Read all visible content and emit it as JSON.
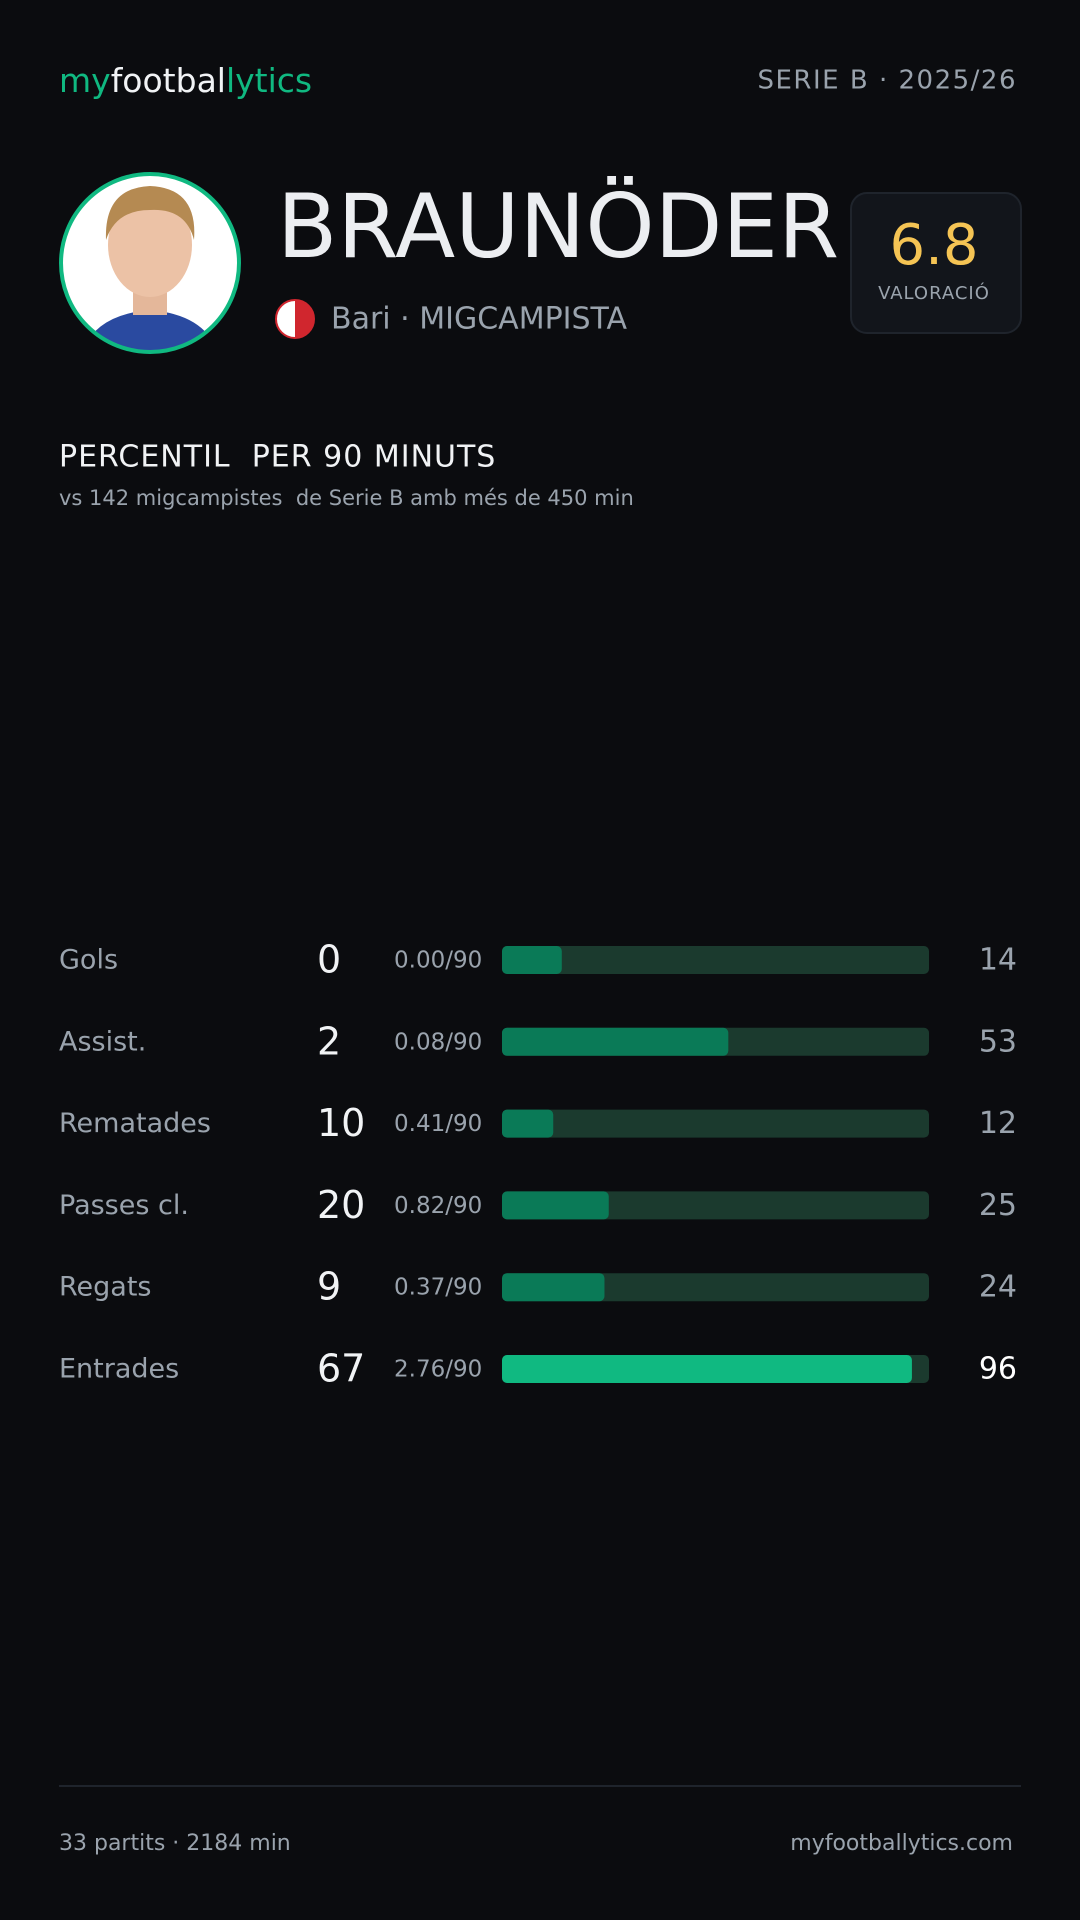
{
  "header": {
    "logo": [
      "my",
      "footbal",
      "lytics"
    ],
    "competition": "SERIE B · 2025/26"
  },
  "player": {
    "name": "BRAUNÖDER",
    "team_position": "Bari · MIGCAMPISTA",
    "rating": "6.8",
    "rating_label": "VALORACIÓ"
  },
  "chart_data": {
    "type": "bar",
    "horizontal": true,
    "title": "PERCENTIL  PER 90 MINUTS",
    "subtitle": "vs 142 migcampistes  de Serie B amb més de 450 min",
    "categories": [
      "Gols",
      "Assist.",
      "Rematades",
      "Passes cl.",
      "Regats",
      "Entrades"
    ],
    "totals": [
      0,
      2,
      10,
      20,
      9,
      67
    ],
    "per90": [
      "0.00/90",
      "0.08/90",
      "0.41/90",
      "0.82/90",
      "0.37/90",
      "2.76/90"
    ],
    "values": [
      14,
      53,
      12,
      25,
      24,
      96
    ],
    "colors": [
      "#0a7a57",
      "#0a7a57",
      "#0a7a57",
      "#0a7a57",
      "#0a7a57",
      "#10b981"
    ],
    "highlight_color": "#10b981",
    "track_color": "#1b3a2e",
    "xlim": [
      0,
      100
    ]
  },
  "footer": {
    "left": "33 partits · 2184 min",
    "right": "myfootballytics.com"
  }
}
